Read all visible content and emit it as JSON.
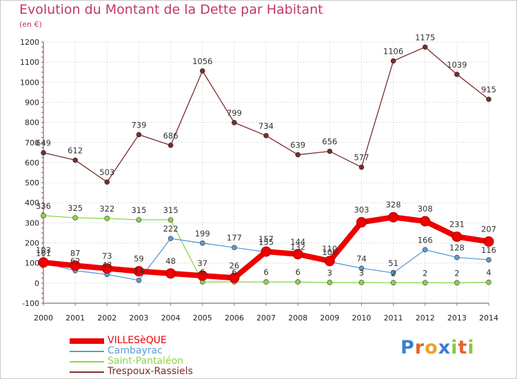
{
  "title": "Evolution du Montant de la Dette par Habitant",
  "subtitle": "(en €)",
  "logo": {
    "letters": [
      "P",
      "r",
      "o",
      "x",
      "i",
      "t",
      "i"
    ],
    "colors": [
      "#3a7fd0",
      "#e8612c",
      "#e8a32c",
      "#3a7fd0",
      "#8cc63f",
      "#e8612c",
      "#8cc63f"
    ]
  },
  "chart_data": {
    "type": "line",
    "title": "Evolution du Montant de la Dette par Habitant",
    "ylabel": "(en €)",
    "xlabel": "",
    "ylim": [
      -100,
      1200
    ],
    "yticks": [
      -100,
      0,
      100,
      200,
      300,
      400,
      500,
      600,
      700,
      800,
      900,
      1000,
      1100,
      1200
    ],
    "x": [
      2000,
      2001,
      2002,
      2003,
      2004,
      2005,
      2006,
      2007,
      2008,
      2009,
      2010,
      2011,
      2012,
      2013,
      2014
    ],
    "grid": true,
    "legend_position": "bottom-left",
    "series": [
      {
        "name": "VILLESèQUE",
        "color": "#ee0000",
        "values": [
          103,
          87,
          73,
          59,
          48,
          37,
          26,
          157,
          144,
          110,
          303,
          328,
          308,
          231,
          207
        ]
      },
      {
        "name": "Cambayrac",
        "color": "#5b9bd5",
        "values": [
          101,
          62,
          43,
          14,
          222,
          199,
          177,
          155,
          132,
          106,
          74,
          51,
          166,
          128,
          116
        ]
      },
      {
        "name": "Saint-Pantaléon",
        "color": "#8cd44b",
        "values": [
          336,
          325,
          322,
          315,
          315,
          6,
          6,
          6,
          6,
          3,
          3,
          2,
          2,
          2,
          4
        ]
      },
      {
        "name": "Trespoux-Rassiels",
        "color": "#7b2b2b",
        "values": [
          649,
          612,
          503,
          739,
          686,
          1056,
          799,
          734,
          639,
          656,
          577,
          1106,
          1175,
          1039,
          915
        ]
      }
    ]
  }
}
